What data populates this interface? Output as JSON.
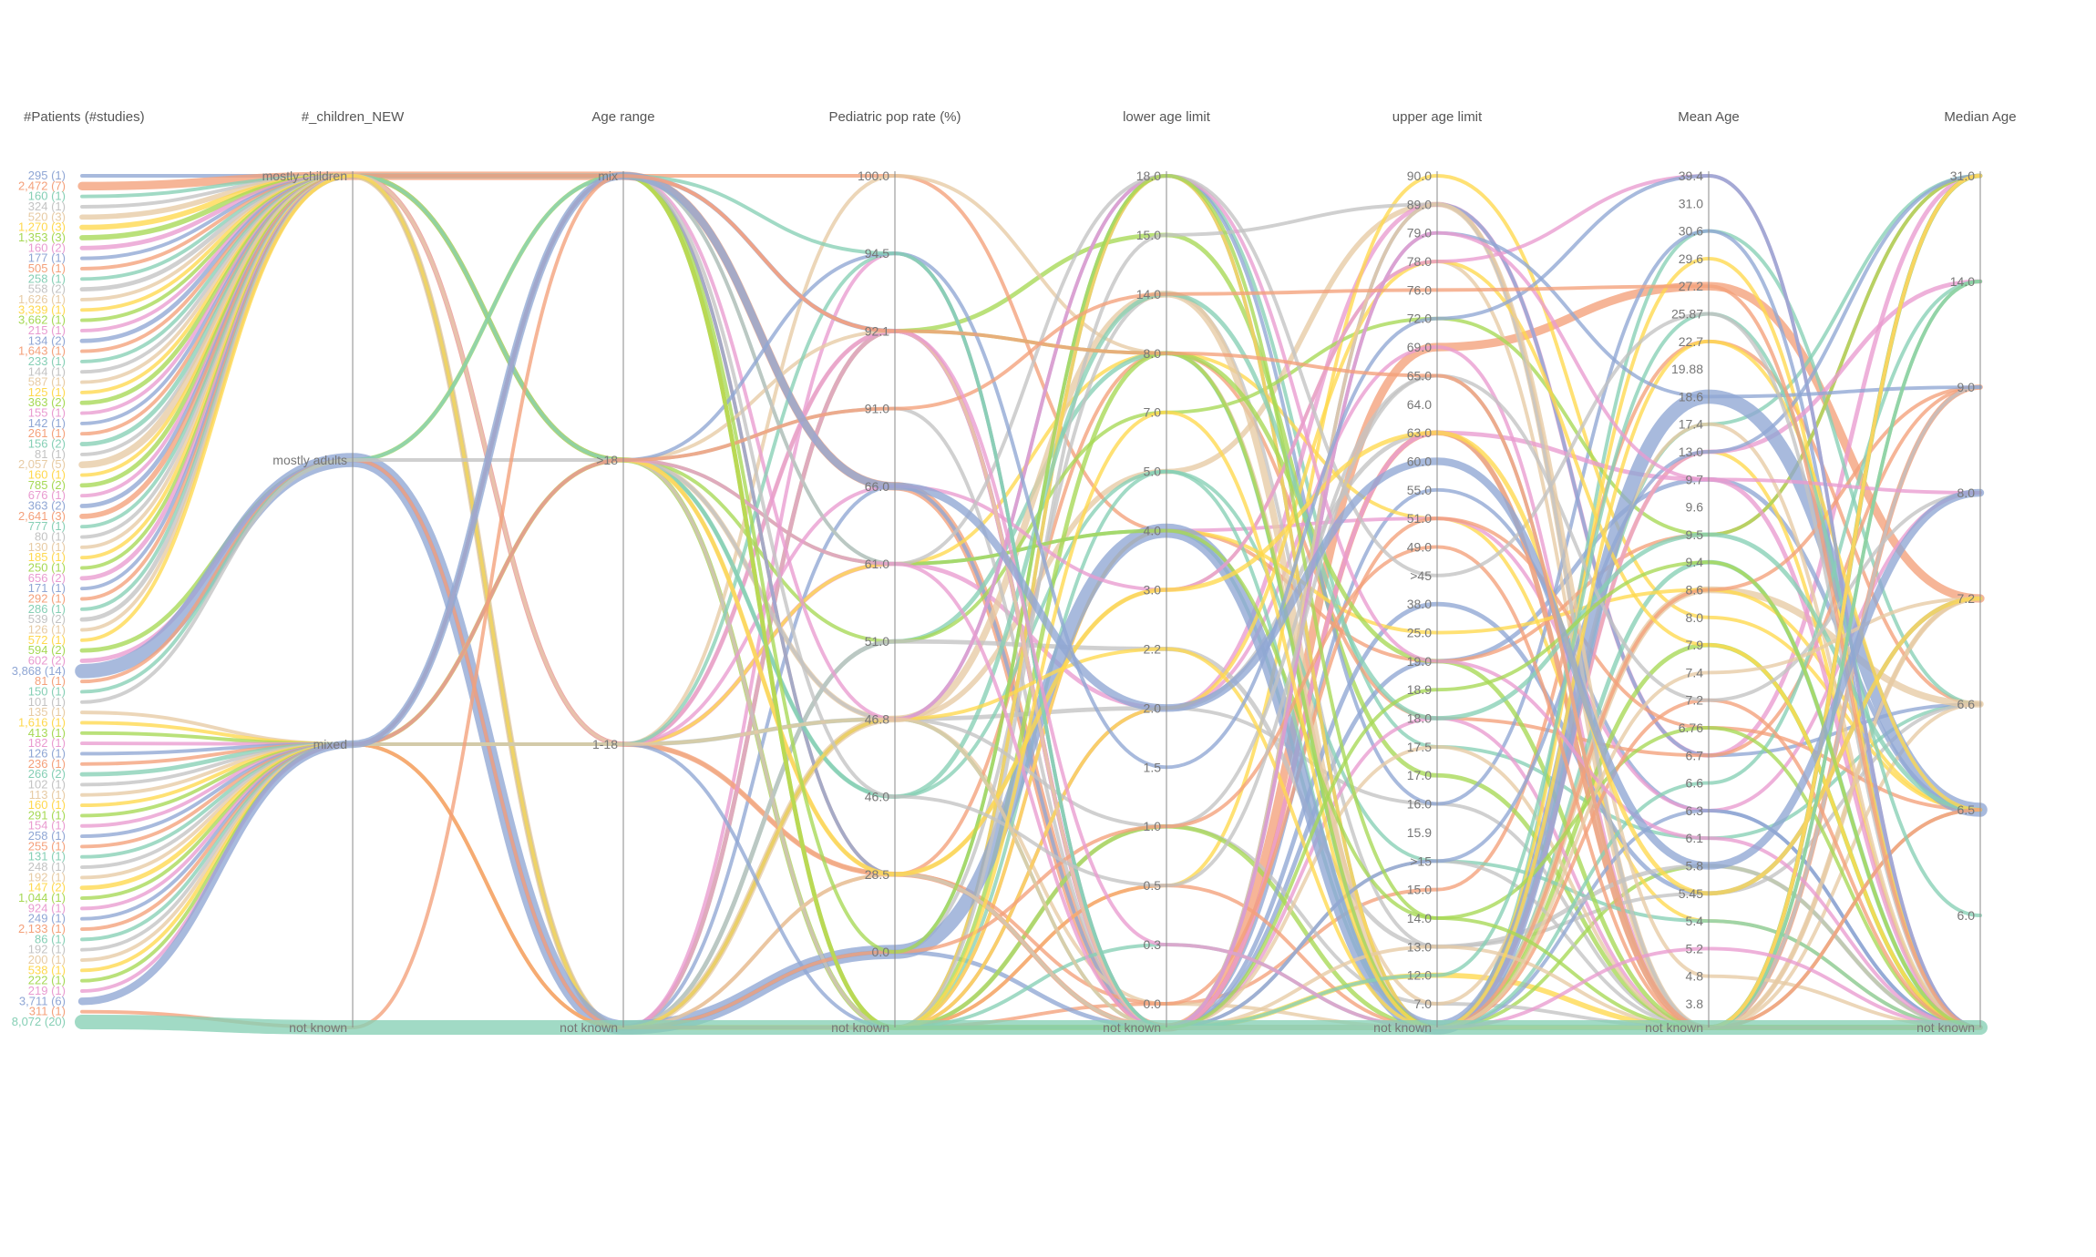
{
  "chart_data": {
    "type": "parallel-sets",
    "axes": [
      {
        "title": "#Patients (#studies)",
        "ticks": [
          "295 (1)",
          "2,472 (7)",
          "160 (1)",
          "324 (1)",
          "520 (3)",
          "1,270 (3)",
          "1,353 (3)",
          "160 (2)",
          "177 (1)",
          "505 (1)",
          "258 (1)",
          "558 (2)",
          "1,626 (1)",
          "3,339 (1)",
          "3,662 (1)",
          "215 (1)",
          "134 (2)",
          "1,643 (1)",
          "233 (1)",
          "144 (1)",
          "587 (1)",
          "125 (1)",
          "363 (2)",
          "155 (1)",
          "142 (1)",
          "261 (1)",
          "156 (2)",
          "81 (1)",
          "2,057 (5)",
          "160 (1)",
          "785 (2)",
          "676 (1)",
          "363 (2)",
          "2,641 (3)",
          "777 (1)",
          "80 (1)",
          "130 (1)",
          "185 (1)",
          "250 (1)",
          "656 (2)",
          "171 (1)",
          "292 (1)",
          "286 (1)",
          "539 (2)",
          "126 (1)",
          "572 (1)",
          "594 (2)",
          "602 (2)",
          "3,868 (14)",
          "81 (1)",
          "150 (1)",
          "101 (1)",
          "135 (1)",
          "1,616 (1)",
          "413 (1)",
          "182 (1)",
          "126 (1)",
          "236 (1)",
          "266 (2)",
          "102 (1)",
          "113 (1)",
          "160 (1)",
          "291 (1)",
          "154 (1)",
          "258 (1)",
          "255 (1)",
          "131 (1)",
          "248 (1)",
          "192 (1)",
          "147 (2)",
          "1,044 (1)",
          "924 (1)",
          "249 (1)",
          "2,133 (1)",
          "86 (1)",
          "192 (1)",
          "200 (1)",
          "538 (1)",
          "222 (1)",
          "219 (1)",
          "3,711 (6)",
          "311 (1)",
          "8,072 (20)"
        ]
      },
      {
        "title": "#_children_NEW",
        "ticks": [
          "mostly children",
          "mostly adults",
          "mixed",
          "not known"
        ]
      },
      {
        "title": "Age range",
        "ticks": [
          "mix",
          ">18",
          "1-18",
          "not known"
        ]
      },
      {
        "title": "Pediatric pop rate (%)",
        "ticks": [
          "100.0",
          "94.5",
          "92.1",
          "91.0",
          "66.0",
          "61.0",
          "51.0",
          "46.8",
          "46.0",
          "28.5",
          "0.0",
          "not known"
        ]
      },
      {
        "title": "lower age limit",
        "ticks": [
          "18.0",
          "15.0",
          "14.0",
          "8.0",
          "7.0",
          "5.0",
          "4.0",
          "3.0",
          "2.2",
          "2.0",
          "1.5",
          "1.0",
          "0.5",
          "0.3",
          "0.0",
          "not known"
        ]
      },
      {
        "title": "upper age limit",
        "ticks": [
          "90.0",
          "89.0",
          "79.0",
          "78.0",
          "76.0",
          "72.0",
          "69.0",
          "65.0",
          "64.0",
          "63.0",
          "60.0",
          "55.0",
          "51.0",
          "49.0",
          ">45",
          "38.0",
          "25.0",
          "19.0",
          "18.9",
          "18.0",
          "17.5",
          "17.0",
          "16.0",
          "15.9",
          ">15",
          "15.0",
          "14.0",
          "13.0",
          "12.0",
          "7.0",
          "not known"
        ]
      },
      {
        "title": "Mean Age",
        "ticks": [
          "39.4",
          "31.0",
          "30.6",
          "29.6",
          "27.2",
          "25.87",
          "22.7",
          "19.88",
          "18.6",
          "17.4",
          "13.0",
          "9.7",
          "9.6",
          "9.5",
          "9.4",
          "8.6",
          "8.0",
          "7.9",
          "7.4",
          "7.2",
          "6.76",
          "6.7",
          "6.6",
          "6.3",
          "6.1",
          "5.8",
          "5.45",
          "5.4",
          "5.2",
          "4.8",
          "3.8",
          "not known"
        ]
      },
      {
        "title": "Median Age",
        "ticks": [
          "31.0",
          "14.0",
          "9.0",
          "8.0",
          "7.2",
          "6.6",
          "6.5",
          "6.0",
          "not known"
        ]
      }
    ],
    "colors": [
      "#8fa6d4",
      "#f4a07a",
      "#86cfb5",
      "#c3c3c3",
      "#e7cba4",
      "#ffd84d",
      "#a6d854",
      "#e99bd0"
    ]
  }
}
